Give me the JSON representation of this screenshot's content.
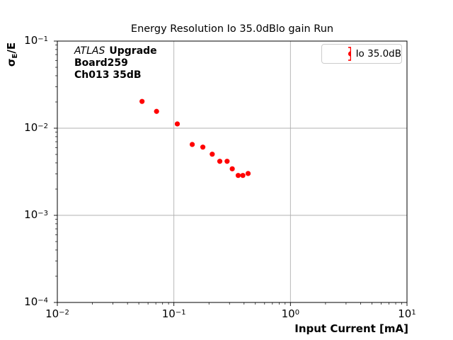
{
  "figure": {
    "title": "Energy Resolution Io 35.0dBlo gain Run",
    "background_color": "#ffffff",
    "frame_color": "#000000"
  },
  "axes": {
    "xlabel": "Input Current [mA]",
    "ylabel_sigma": "σ",
    "ylabel_sub": "E",
    "ylabel_rest": "/E"
  },
  "annotation": {
    "line1_italic": "ATLAS",
    "line1_bold": "Upgrade",
    "line2": "Board259",
    "line3": "Ch013 35dB"
  },
  "legend": {
    "label": "Io 35.0dB",
    "marker_color": "#ff0000",
    "marker_icon": "errorbar-point-icon",
    "border_color": "#cccccc",
    "position": "upper right"
  },
  "chart_data": {
    "type": "scatter",
    "title": "Energy Resolution Io 35.0dBlo gain Run",
    "xlabel": "Input Current [mA]",
    "ylabel": "sigma_E/E",
    "x_scale": "log",
    "y_scale": "log",
    "xlim": [
      0.01,
      10
    ],
    "ylim": [
      0.0001,
      0.1
    ],
    "x_tick_exponents": [
      -2,
      -1,
      0,
      1
    ],
    "y_tick_exponents": [
      -1,
      -2,
      -3,
      -4
    ],
    "grid": "major",
    "grid_color": "#b0b0b0",
    "legend_position": "upper right",
    "series": [
      {
        "name": "Io 35.0dB",
        "color": "#ff0000",
        "marker": "circle",
        "x": [
          0.0533,
          0.071,
          0.107,
          0.1437,
          0.1772,
          0.2133,
          0.2477,
          0.2861,
          0.3168,
          0.3563,
          0.3906,
          0.4333
        ],
        "y": [
          0.0203,
          0.0156,
          0.0112,
          0.00651,
          0.00607,
          0.00503,
          0.00417,
          0.00417,
          0.00342,
          0.00287,
          0.00287,
          0.00302
        ],
        "yerr": [
          0.0004,
          0.0003,
          0.00022,
          0.00013,
          0.00012,
          0.0001,
          8e-05,
          8e-05,
          7e-05,
          6e-05,
          6e-05,
          6e-05
        ]
      }
    ]
  }
}
